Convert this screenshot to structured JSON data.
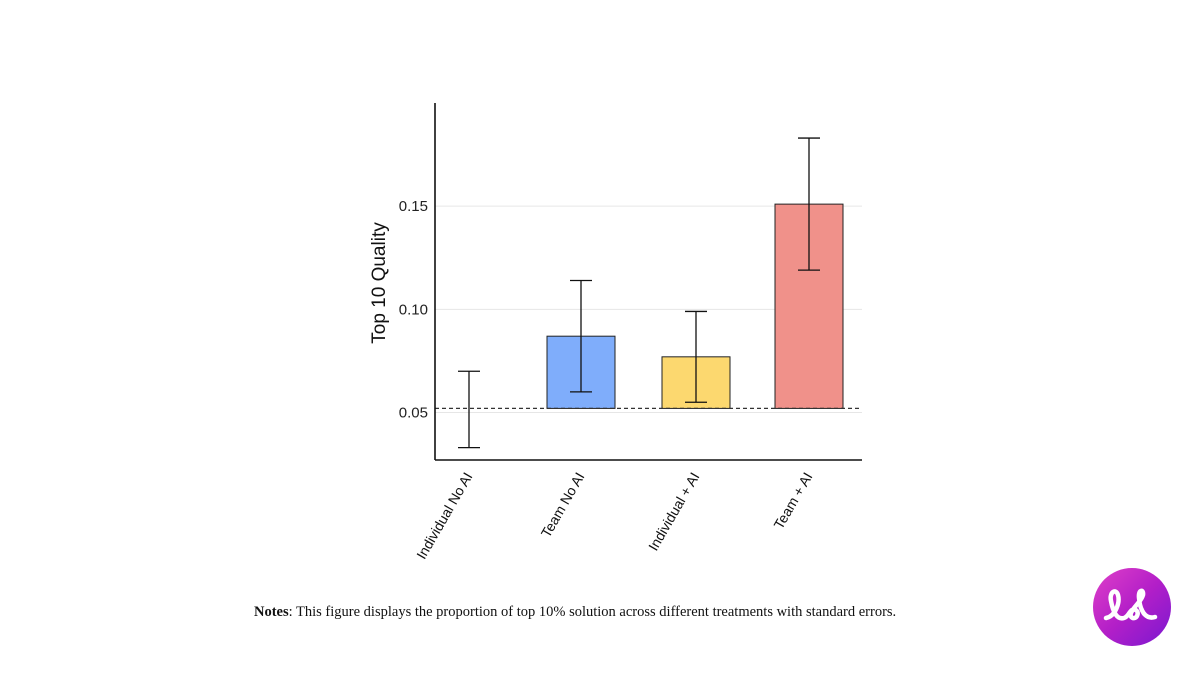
{
  "chart_data": {
    "type": "bar",
    "categories": [
      "Individual No AI",
      "Team No AI",
      "Individual + AI",
      "Team + AI"
    ],
    "values": [
      0.052,
      0.087,
      0.077,
      0.151
    ],
    "errors_low": [
      0.033,
      0.06,
      0.055,
      0.119
    ],
    "errors_high": [
      0.07,
      0.114,
      0.099,
      0.183
    ],
    "bar_colors": [
      "#ffffff",
      "#7fadfb",
      "#fcd86f",
      "#f0918a"
    ],
    "baseline": 0.052,
    "baseline_style": "dashed",
    "ylabel": "Top 10 Quality",
    "xlabel": "",
    "yticks": [
      0.05,
      0.1,
      0.15
    ],
    "ytick_labels": [
      "0.05",
      "0.10",
      "0.15"
    ],
    "ylim": [
      0.027,
      0.2
    ],
    "grid": "horizontal"
  },
  "notes": {
    "label": "Notes",
    "text": ": This figure displays the proportion of top 10% solution across different treatments with standard errors."
  },
  "logo": {
    "icon": "loop-logo-icon",
    "color": "#c42ad0"
  }
}
